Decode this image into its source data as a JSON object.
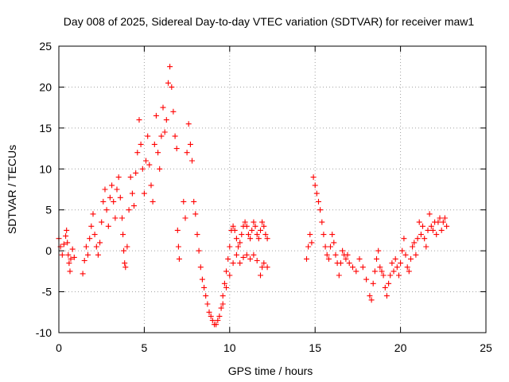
{
  "chart_data": {
    "type": "scatter",
    "title": "Day 008 of 2025, Sidereal Day-to-day VTEC variation (SDTVAR) for receiver maw1",
    "xlabel": "GPS time / hours",
    "ylabel": "SDTVAR / TECUs",
    "xlim": [
      0,
      25
    ],
    "ylim": [
      -10,
      25
    ],
    "xticks": [
      0,
      5,
      10,
      15,
      20,
      25
    ],
    "yticks": [
      -10,
      -5,
      0,
      5,
      10,
      15,
      20,
      25
    ],
    "xtick_labels": [
      "0",
      "5",
      "10",
      "15",
      "20",
      "25"
    ],
    "ytick_labels": [
      "-10",
      "-5",
      "0",
      "5",
      "10",
      "15",
      "20",
      "25"
    ],
    "grid": true,
    "marker": "+",
    "color": "#ff0000",
    "series": [
      {
        "name": "maw1",
        "points": [
          [
            0.0,
            1.5
          ],
          [
            0.1,
            0.5
          ],
          [
            0.2,
            -0.5
          ],
          [
            0.3,
            0.8
          ],
          [
            0.4,
            1.8
          ],
          [
            0.45,
            2.5
          ],
          [
            0.5,
            1.0
          ],
          [
            0.55,
            -0.5
          ],
          [
            0.6,
            -1.5
          ],
          [
            0.65,
            -2.5
          ],
          [
            0.7,
            -1.0
          ],
          [
            0.8,
            0.2
          ],
          [
            0.9,
            -0.8
          ],
          [
            1.4,
            -2.8
          ],
          [
            1.5,
            -1.2
          ],
          [
            1.6,
            0.5
          ],
          [
            1.7,
            -0.5
          ],
          [
            1.8,
            1.5
          ],
          [
            1.9,
            3.0
          ],
          [
            2.0,
            4.5
          ],
          [
            2.1,
            2.0
          ],
          [
            2.2,
            0.5
          ],
          [
            2.3,
            -0.5
          ],
          [
            2.4,
            1.0
          ],
          [
            2.5,
            3.5
          ],
          [
            2.6,
            6.0
          ],
          [
            2.7,
            7.5
          ],
          [
            2.8,
            5.0
          ],
          [
            2.9,
            3.0
          ],
          [
            3.0,
            6.5
          ],
          [
            3.1,
            8.0
          ],
          [
            3.2,
            6.0
          ],
          [
            3.3,
            4.0
          ],
          [
            3.4,
            7.5
          ],
          [
            3.5,
            9.0
          ],
          [
            3.6,
            6.5
          ],
          [
            3.7,
            4.0
          ],
          [
            3.75,
            2.0
          ],
          [
            3.8,
            0.0
          ],
          [
            3.85,
            -1.5
          ],
          [
            3.9,
            -2.0
          ],
          [
            4.0,
            0.5
          ],
          [
            4.1,
            5.0
          ],
          [
            4.2,
            9.0
          ],
          [
            4.3,
            7.0
          ],
          [
            4.4,
            5.5
          ],
          [
            4.5,
            9.5
          ],
          [
            4.6,
            12.0
          ],
          [
            4.7,
            16.0
          ],
          [
            4.8,
            13.0
          ],
          [
            4.9,
            10.0
          ],
          [
            5.0,
            7.0
          ],
          [
            5.1,
            11.0
          ],
          [
            5.2,
            14.0
          ],
          [
            5.3,
            10.5
          ],
          [
            5.4,
            8.0
          ],
          [
            5.5,
            6.0
          ],
          [
            5.6,
            13.0
          ],
          [
            5.7,
            16.5
          ],
          [
            5.8,
            12.0
          ],
          [
            5.9,
            10.0
          ],
          [
            6.0,
            14.0
          ],
          [
            6.1,
            17.5
          ],
          [
            6.2,
            14.5
          ],
          [
            6.3,
            16.0
          ],
          [
            6.4,
            20.5
          ],
          [
            6.5,
            22.5
          ],
          [
            6.6,
            20.0
          ],
          [
            6.7,
            17.0
          ],
          [
            6.8,
            14.0
          ],
          [
            6.9,
            12.5
          ],
          [
            6.95,
            2.5
          ],
          [
            7.0,
            0.5
          ],
          [
            7.05,
            -1.0
          ],
          [
            7.3,
            6.0
          ],
          [
            7.4,
            4.0
          ],
          [
            7.5,
            12.0
          ],
          [
            7.6,
            15.5
          ],
          [
            7.7,
            13.0
          ],
          [
            7.8,
            11.0
          ],
          [
            7.9,
            6.0
          ],
          [
            8.0,
            4.5
          ],
          [
            8.1,
            2.0
          ],
          [
            8.2,
            0.0
          ],
          [
            8.3,
            -2.0
          ],
          [
            8.4,
            -3.5
          ],
          [
            8.5,
            -4.5
          ],
          [
            8.6,
            -5.5
          ],
          [
            8.7,
            -6.5
          ],
          [
            8.8,
            -7.5
          ],
          [
            8.9,
            -8.0
          ],
          [
            9.0,
            -8.5
          ],
          [
            9.1,
            -9.0
          ],
          [
            9.2,
            -9.0
          ],
          [
            9.3,
            -8.5
          ],
          [
            9.4,
            -8.0
          ],
          [
            9.5,
            -7.0
          ],
          [
            9.6,
            -5.5
          ],
          [
            9.7,
            -4.0
          ],
          [
            9.8,
            -2.5
          ],
          [
            9.9,
            -1.0
          ],
          [
            10.0,
            0.5
          ],
          [
            10.1,
            2.5
          ],
          [
            10.2,
            3.0
          ],
          [
            10.3,
            2.5
          ],
          [
            10.4,
            1.5
          ],
          [
            10.5,
            0.5
          ],
          [
            10.6,
            1.0
          ],
          [
            10.7,
            2.0
          ],
          [
            10.8,
            3.0
          ],
          [
            10.9,
            3.5
          ],
          [
            11.0,
            3.0
          ],
          [
            11.1,
            2.0
          ],
          [
            11.2,
            1.5
          ],
          [
            11.3,
            2.5
          ],
          [
            11.4,
            3.5
          ],
          [
            11.5,
            3.0
          ],
          [
            11.6,
            2.0
          ],
          [
            11.7,
            1.5
          ],
          [
            11.8,
            2.5
          ],
          [
            11.9,
            3.5
          ],
          [
            12.0,
            3.0
          ],
          [
            12.1,
            2.0
          ],
          [
            12.2,
            1.5
          ],
          [
            9.6,
            -6.5
          ],
          [
            9.8,
            -4.5
          ],
          [
            10.0,
            -3.0
          ],
          [
            10.2,
            -1.5
          ],
          [
            10.4,
            -0.5
          ],
          [
            10.6,
            -1.5
          ],
          [
            10.8,
            -0.8
          ],
          [
            11.0,
            -0.5
          ],
          [
            11.2,
            -1.0
          ],
          [
            11.4,
            -0.5
          ],
          [
            11.6,
            -1.2
          ],
          [
            11.8,
            -3.0
          ],
          [
            11.9,
            -2.0
          ],
          [
            12.0,
            -1.5
          ],
          [
            12.2,
            -2.0
          ],
          [
            14.5,
            -1.0
          ],
          [
            14.6,
            0.5
          ],
          [
            14.7,
            2.0
          ],
          [
            14.8,
            1.0
          ],
          [
            14.9,
            9.0
          ],
          [
            15.0,
            8.0
          ],
          [
            15.1,
            7.0
          ],
          [
            15.2,
            6.0
          ],
          [
            15.3,
            5.0
          ],
          [
            15.4,
            3.5
          ],
          [
            15.5,
            2.0
          ],
          [
            15.6,
            0.5
          ],
          [
            15.7,
            -0.5
          ],
          [
            15.8,
            -1.0
          ],
          [
            15.9,
            0.5
          ],
          [
            16.0,
            2.0
          ],
          [
            16.1,
            1.0
          ],
          [
            16.2,
            -0.5
          ],
          [
            16.3,
            -1.5
          ],
          [
            16.4,
            -3.0
          ],
          [
            16.5,
            -1.5
          ],
          [
            16.6,
            0.0
          ],
          [
            16.7,
            -0.5
          ],
          [
            16.8,
            -1.0
          ],
          [
            16.9,
            -0.5
          ],
          [
            17.0,
            -1.5
          ],
          [
            17.2,
            -2.0
          ],
          [
            17.4,
            -2.5
          ],
          [
            17.6,
            -1.0
          ],
          [
            17.8,
            -2.0
          ],
          [
            18.0,
            -3.5
          ],
          [
            18.2,
            -5.5
          ],
          [
            18.3,
            -6.0
          ],
          [
            18.4,
            -4.0
          ],
          [
            18.5,
            -2.5
          ],
          [
            18.6,
            -1.0
          ],
          [
            18.7,
            0.0
          ],
          [
            18.8,
            -2.0
          ],
          [
            18.9,
            -2.5
          ],
          [
            19.0,
            -3.0
          ],
          [
            19.1,
            -4.5
          ],
          [
            19.2,
            -5.5
          ],
          [
            19.3,
            -4.0
          ],
          [
            19.4,
            -3.0
          ],
          [
            19.5,
            -1.5
          ],
          [
            19.6,
            -2.5
          ],
          [
            19.7,
            -1.0
          ],
          [
            19.8,
            -2.0
          ],
          [
            19.9,
            -3.0
          ],
          [
            20.0,
            -1.5
          ],
          [
            20.1,
            0.0
          ],
          [
            20.2,
            1.5
          ],
          [
            20.3,
            -0.5
          ],
          [
            20.4,
            -2.0
          ],
          [
            20.5,
            -2.5
          ],
          [
            20.6,
            -1.0
          ],
          [
            20.7,
            0.5
          ],
          [
            20.8,
            1.0
          ],
          [
            20.9,
            -0.5
          ],
          [
            21.0,
            1.5
          ],
          [
            21.1,
            3.5
          ],
          [
            21.2,
            2.0
          ],
          [
            21.3,
            3.0
          ],
          [
            21.4,
            1.5
          ],
          [
            21.5,
            0.5
          ],
          [
            21.6,
            2.5
          ],
          [
            21.7,
            4.5
          ],
          [
            21.8,
            3.0
          ],
          [
            21.9,
            2.5
          ],
          [
            22.0,
            3.5
          ],
          [
            22.1,
            2.0
          ],
          [
            22.2,
            3.5
          ],
          [
            22.3,
            4.0
          ],
          [
            22.4,
            2.5
          ],
          [
            22.5,
            3.5
          ],
          [
            22.6,
            4.0
          ],
          [
            22.7,
            3.0
          ]
        ]
      }
    ]
  }
}
